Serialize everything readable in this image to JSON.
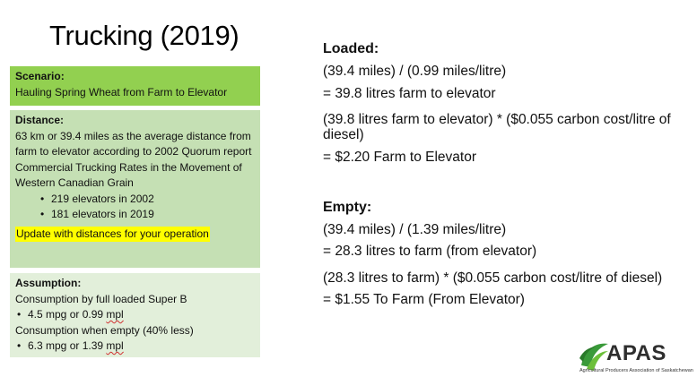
{
  "title": "Trucking (2019)",
  "scenario": {
    "heading": "Scenario:",
    "text": "Hauling Spring Wheat from Farm to Elevator"
  },
  "distance": {
    "heading": "Distance:",
    "text": "63 km or 39.4 miles as the average distance from farm to elevator according to 2002 Quorum report Commercial Trucking Rates in the Movement of Western Canadian Grain",
    "bullets": [
      "219 elevators in 2002",
      "181 elevators in 2019"
    ],
    "highlight": "Update with distances for your operation"
  },
  "assumption": {
    "heading": "Assumption:",
    "line1": "Consumption by full loaded Super B",
    "bullet1_pre": "4.5 mpg or 0.99 ",
    "bullet1_mpl": "mpl",
    "line2": "Consumption when empty (40% less)",
    "bullet2_pre": "6.3 mpg or 1.39 ",
    "bullet2_mpl": "mpl"
  },
  "loaded": {
    "heading": "Loaded:",
    "line1": "(39.4 miles) / (0.99 miles/litre)",
    "line2": "= 39.8 litres farm to elevator",
    "line3": "(39.8 litres farm to elevator) * ($0.055 carbon cost/litre of diesel)",
    "line4": "= $2.20 Farm to Elevator"
  },
  "empty": {
    "heading": "Empty:",
    "line1": "(39.4 miles) / (1.39 miles/litre)",
    "line2": "= 28.3 litres to farm (from elevator)",
    "line3": "(28.3 litres to farm) * ($0.055 carbon cost/litre of diesel)",
    "line4": "= $1.55 To Farm (From Elevator)"
  },
  "logo": {
    "name": "APAS",
    "tagline": "Agricultural Producers Association of Saskatchewan"
  },
  "colors": {
    "scenario_bg": "#92d050",
    "distance_bg": "#c5e0b4",
    "assumption_bg": "#e2efda",
    "highlight": "#ffff00",
    "logo_green": "#3a9a3a"
  }
}
